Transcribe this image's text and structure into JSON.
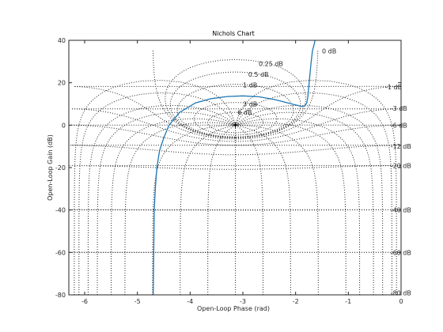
{
  "chart_data": {
    "type": "line",
    "title": "Nichols Chart",
    "xlabel": "Open-Loop Phase (rad)",
    "ylabel": "Open-Loop Gain (dB)",
    "xlim": [
      -6.3,
      0
    ],
    "ylim": [
      -80,
      40
    ],
    "xticks": [
      -6,
      -5,
      -4,
      -3,
      -2,
      -1,
      0
    ],
    "yticks": [
      -80,
      -60,
      -40,
      -20,
      0,
      20,
      40
    ],
    "grid": "Nichols chart grid: constant closed-loop magnitude and phase contours (dotted)",
    "critical_point": [
      -3.1416,
      0
    ],
    "magnitude_contours_db": [
      0,
      0.25,
      0.5,
      1,
      3,
      6,
      -1,
      -3,
      -6,
      -12,
      -20,
      -40,
      -60,
      -80
    ],
    "contour_labels": [
      {
        "text": "0 dB",
        "x": -1.5,
        "y": 35
      },
      {
        "text": "0.25 dB",
        "x": -2.7,
        "y": 29
      },
      {
        "text": "0.5 dB",
        "x": -2.9,
        "y": 24
      },
      {
        "text": "1 dB",
        "x": -3.0,
        "y": 19
      },
      {
        "text": "3 dB",
        "x": -3.0,
        "y": 10
      },
      {
        "text": "6 dB",
        "x": -3.1,
        "y": 6
      },
      {
        "text": "-1 dB",
        "x": -0.3,
        "y": 18
      },
      {
        "text": "-3 dB",
        "x": -0.2,
        "y": 8
      },
      {
        "text": "-6 dB",
        "x": -0.2,
        "y": 0
      },
      {
        "text": "-12 dB",
        "x": -0.2,
        "y": -10
      },
      {
        "text": "-20 dB",
        "x": -0.2,
        "y": -19
      },
      {
        "text": "-40 dB",
        "x": -0.2,
        "y": -40
      },
      {
        "text": "-60 dB",
        "x": -0.2,
        "y": -60
      },
      {
        "text": "-80 dB",
        "x": -0.2,
        "y": -79
      }
    ],
    "series": [
      {
        "color": "#1f77b4",
        "x": [
          -4.7,
          -4.69,
          -4.68,
          -4.66,
          -4.63,
          -4.58,
          -4.5,
          -4.4,
          -4.2,
          -3.9,
          -3.6,
          -3.3,
          -3.0,
          -2.7,
          -2.4,
          -2.1,
          -1.95,
          -1.87,
          -1.82,
          -1.79,
          -1.77,
          -1.75,
          -1.72,
          -1.7,
          -1.68,
          -1.65,
          -1.63
        ],
        "y": [
          -80,
          -60,
          -40,
          -30,
          -20,
          -12,
          -6,
          0,
          6,
          10.5,
          12.5,
          13.5,
          13.8,
          13.4,
          12.1,
          10.2,
          9.2,
          8.7,
          9.2,
          10.5,
          13,
          18,
          26,
          31,
          35,
          38,
          40
        ]
      }
    ]
  }
}
